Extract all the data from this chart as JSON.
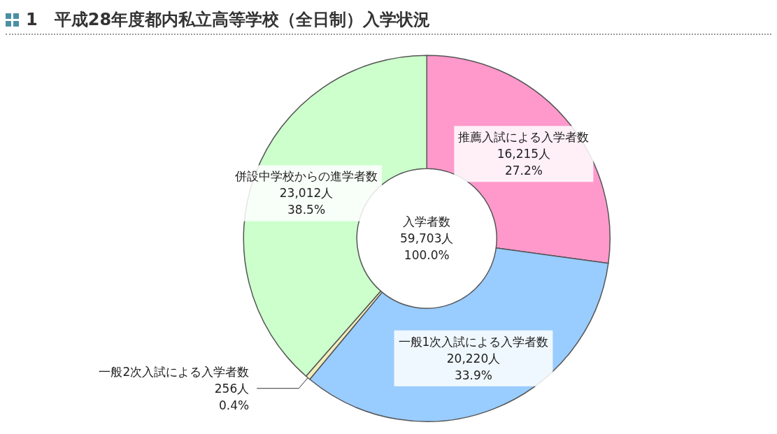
{
  "chart_data": {
    "type": "donut",
    "title": "1　平成28年度都内私立高等学校（全日制）入学状況",
    "categories": [
      "推薦入試による入学者数",
      "一般1次入試による入学者数",
      "一般2次入試による入学者数",
      "併設中学校からの進学者数"
    ],
    "values": [
      16215,
      20220,
      256,
      23012
    ],
    "colors": [
      "#ff99cc",
      "#99ccff",
      "#f2eebb",
      "#ccffcc"
    ],
    "value_labels": [
      "16,215人\n27.2%",
      "20,220人\n33.9%",
      "256人\n0.4%",
      "23,012人\n38.5%"
    ],
    "annotations": [
      "入学者数\n59,703人\n100.0%"
    ],
    "legend": false
  }
}
